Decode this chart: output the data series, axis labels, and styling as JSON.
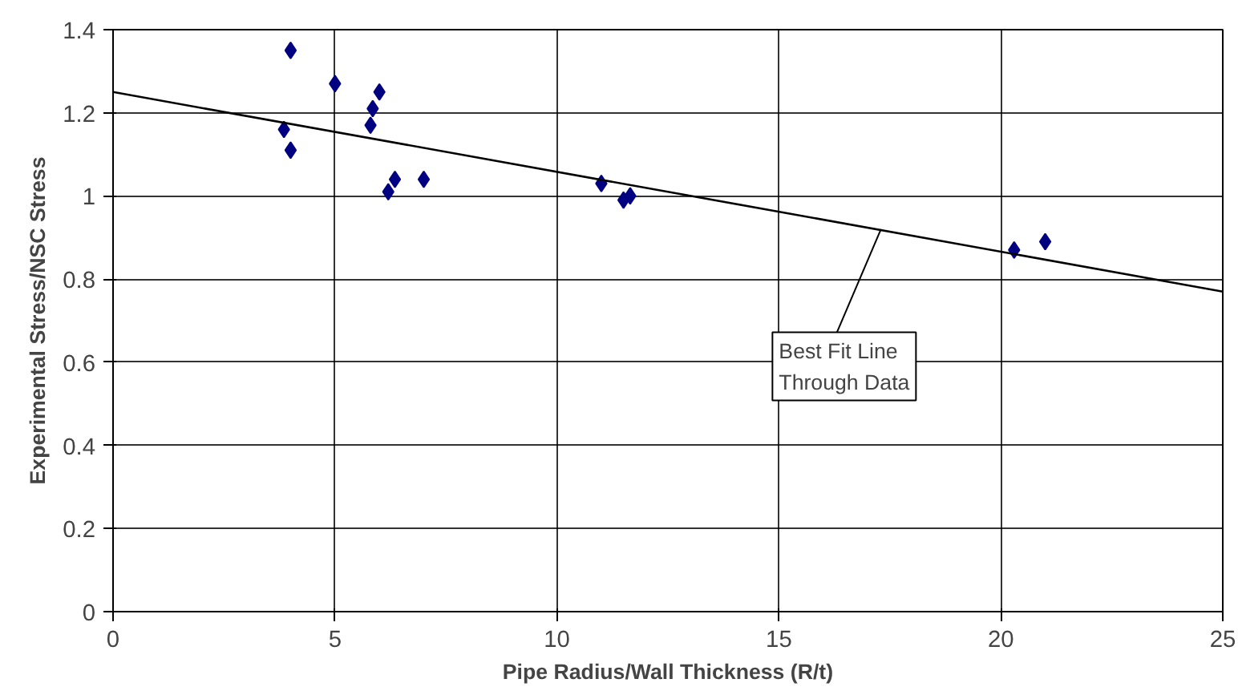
{
  "chart_data": {
    "type": "scatter",
    "xlabel": "Pipe Radius/Wall Thickness (R/t)",
    "ylabel": "Experimental Stress/NSC Stress",
    "series": [
      {
        "marker": "diamond",
        "color": "#000080",
        "x": [
          3.85,
          4.0,
          4.0,
          5.0,
          5.8,
          5.85,
          6.0,
          6.2,
          6.35,
          7.0,
          11.0,
          11.5,
          11.65,
          20.3,
          21.0
        ],
        "values": [
          1.16,
          1.35,
          1.11,
          1.27,
          1.17,
          1.21,
          1.25,
          1.01,
          1.04,
          1.04,
          1.03,
          0.99,
          1.0,
          0.87,
          0.89
        ]
      },
      {
        "type": "line",
        "color": "#000000",
        "x": [
          0,
          25
        ],
        "values": [
          1.25,
          0.77
        ]
      }
    ],
    "xlim": [
      0,
      25
    ],
    "xticks": [
      0,
      5,
      10,
      15,
      20,
      25
    ],
    "ylim": [
      0,
      1.4
    ],
    "yticks": [
      0,
      0.2,
      0.4,
      0.6,
      0.8,
      1,
      1.2,
      1.4
    ],
    "grid": true,
    "annotations": [
      {
        "text": "Best Fit Line\nThrough Data",
        "x": 17.3,
        "y": 0.92
      }
    ]
  }
}
